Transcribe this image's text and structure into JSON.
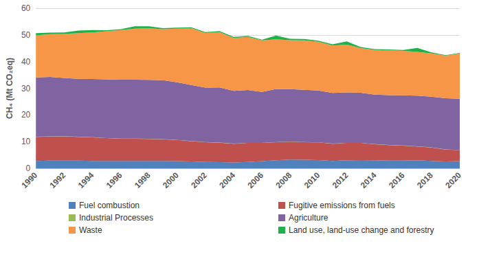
{
  "chart_data": {
    "type": "area",
    "stacked": true,
    "y_label": "CH₄ (Mt CO₂eq)",
    "categories": [
      "1990",
      null,
      "1992",
      null,
      "1994",
      null,
      "1996",
      null,
      "1998",
      null,
      "2000",
      null,
      "2002",
      null,
      "2004",
      null,
      "2006",
      null,
      "2008",
      null,
      "2010",
      null,
      "2012",
      null,
      "2014",
      null,
      "2016",
      null,
      "2018",
      null,
      "2020"
    ],
    "ylim": [
      0,
      60
    ],
    "yticks": [
      0,
      10,
      20,
      30,
      40,
      50,
      60
    ],
    "grid": true,
    "legend": "bottom",
    "series": [
      {
        "name": "Fuel combustion",
        "color": "#4f81bd",
        "values": [
          2.8,
          2.9,
          2.9,
          2.9,
          2.8,
          2.8,
          2.8,
          2.8,
          2.8,
          2.8,
          2.7,
          2.6,
          2.4,
          2.3,
          2.2,
          2.4,
          2.7,
          3.0,
          3.3,
          3.2,
          3.1,
          2.8,
          3.0,
          3.1,
          3.0,
          2.9,
          2.9,
          3.0,
          2.8,
          2.6,
          2.7
        ]
      },
      {
        "name": "Fugitive emissions from fuels",
        "color": "#c0504d",
        "values": [
          9.0,
          9.0,
          9.1,
          8.9,
          8.8,
          8.5,
          8.3,
          8.3,
          8.2,
          8.1,
          7.9,
          7.6,
          7.4,
          7.3,
          7.0,
          7.1,
          6.8,
          6.8,
          6.7,
          6.6,
          6.6,
          6.4,
          6.5,
          6.4,
          6.0,
          5.8,
          5.6,
          5.2,
          5.0,
          4.4,
          4.1
        ]
      },
      {
        "name": "Industrial Processes",
        "color": "#9bbb59",
        "values": [
          0.05,
          0.05,
          0.05,
          0.05,
          0.05,
          0.05,
          0.05,
          0.05,
          0.05,
          0.05,
          0.05,
          0.05,
          0.05,
          0.05,
          0.05,
          0.05,
          0.05,
          0.05,
          0.05,
          0.05,
          0.05,
          0.05,
          0.05,
          0.05,
          0.05,
          0.05,
          0.05,
          0.05,
          0.05,
          0.05,
          0.05
        ]
      },
      {
        "name": "Agriculture",
        "color": "#8064a2",
        "values": [
          22.2,
          22.3,
          21.8,
          21.7,
          21.8,
          22.0,
          22.1,
          22.1,
          22.1,
          22.1,
          21.6,
          21.0,
          20.4,
          20.7,
          19.8,
          19.8,
          19.1,
          19.9,
          19.6,
          19.6,
          19.4,
          19.0,
          18.9,
          18.8,
          18.6,
          18.7,
          18.8,
          19.0,
          19.0,
          19.2,
          19.2
        ]
      },
      {
        "name": "Waste",
        "color": "#f79646",
        "values": [
          15.8,
          16.0,
          16.5,
          17.1,
          17.5,
          18.0,
          18.6,
          19.1,
          19.3,
          19.1,
          20.1,
          21.3,
          20.5,
          20.7,
          19.8,
          19.9,
          19.3,
          18.6,
          18.4,
          18.5,
          18.3,
          17.8,
          17.9,
          16.7,
          16.7,
          16.8,
          16.7,
          16.4,
          16.2,
          16.0,
          17.0
        ]
      },
      {
        "name": "Land use, land-use change and forestry",
        "color": "#1fb24a",
        "values": [
          0.8,
          0.6,
          0.6,
          1.0,
          0.9,
          0.4,
          0.3,
          0.9,
          0.8,
          0.4,
          0.4,
          0.3,
          0.3,
          0.4,
          0.4,
          0.4,
          0.3,
          1.4,
          0.5,
          0.5,
          0.4,
          0.4,
          1.2,
          0.4,
          0.3,
          0.3,
          0.3,
          1.5,
          0.4,
          0.2,
          0.2
        ]
      }
    ]
  }
}
